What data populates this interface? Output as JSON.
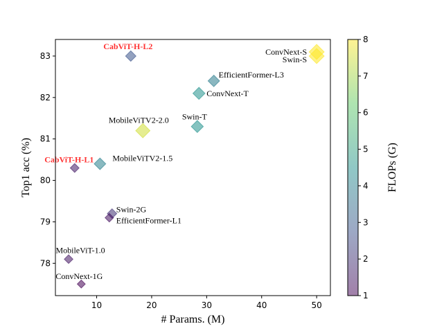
{
  "chart_data": {
    "type": "scatter",
    "title": "",
    "xlabel": "# Params. (M)",
    "ylabel": "Top1 acc (%)",
    "xlim": [
      2.5,
      52.5
    ],
    "ylim": [
      77.22,
      83.4
    ],
    "xticks": [
      10,
      20,
      30,
      40,
      50
    ],
    "yticks": [
      78,
      79,
      80,
      81,
      82,
      83
    ],
    "grid": false,
    "colorbar": {
      "label": "FLOPs (G)",
      "range": [
        1,
        8
      ],
      "ticks": [
        1,
        2,
        3,
        4,
        5,
        6,
        7,
        8
      ],
      "colormap": "viridis",
      "alpha": 0.5
    },
    "highlight_color": "#ff3333",
    "points": [
      {
        "name": "CabViT-H-L2",
        "params": 16.2,
        "acc": 83.0,
        "flops": 2.8,
        "highlight": true
      },
      {
        "name": "EfficientFormer-L3",
        "params": 31.3,
        "acc": 82.4,
        "flops": 3.9,
        "highlight": false
      },
      {
        "name": "ConvNext-T",
        "params": 28.6,
        "acc": 82.1,
        "flops": 4.5,
        "highlight": false
      },
      {
        "name": "Swin-T",
        "params": 28.3,
        "acc": 81.3,
        "flops": 4.5,
        "highlight": false
      },
      {
        "name": "MobileViTV2-2.0",
        "params": 18.4,
        "acc": 81.2,
        "flops": 7.5,
        "highlight": false
      },
      {
        "name": "MobileViTV2-1.5",
        "params": 10.6,
        "acc": 80.4,
        "flops": 4.0,
        "highlight": false
      },
      {
        "name": "CabViT-H-L1",
        "params": 6.0,
        "acc": 80.3,
        "flops": 1.5,
        "highlight": true
      },
      {
        "name": "Swin-2G",
        "params": 12.8,
        "acc": 79.2,
        "flops": 2.0,
        "highlight": false
      },
      {
        "name": "EfficientFormer-L1",
        "params": 12.3,
        "acc": 79.1,
        "flops": 1.3,
        "highlight": false
      },
      {
        "name": "MobileViT-1.0",
        "params": 4.9,
        "acc": 78.1,
        "flops": 1.4,
        "highlight": false
      },
      {
        "name": "ConvNext-1G",
        "params": 7.2,
        "acc": 77.5,
        "flops": 1.0,
        "highlight": false
      },
      {
        "name": "ConvNext-S",
        "params": 50.0,
        "acc": 83.1,
        "flops": 8.7,
        "highlight": false
      },
      {
        "name": "Swin-S",
        "params": 50.0,
        "acc": 83.0,
        "flops": 8.7,
        "highlight": false
      }
    ]
  }
}
